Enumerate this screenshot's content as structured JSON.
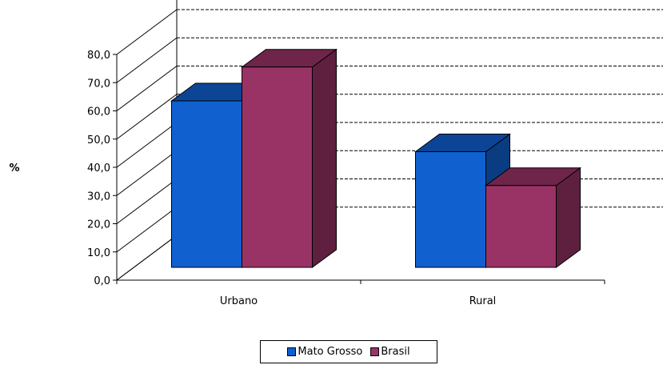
{
  "chart_data": {
    "type": "bar",
    "title": "",
    "xlabel": "",
    "ylabel": "%",
    "ylim": [
      0,
      80
    ],
    "yticks": [
      "0,0",
      "10,0",
      "20,0",
      "30,0",
      "40,0",
      "50,0",
      "60,0",
      "70,0",
      "80,0"
    ],
    "ytick_values": [
      0,
      10,
      20,
      30,
      40,
      50,
      60,
      70,
      80
    ],
    "categories": [
      "Urbano",
      "Rural"
    ],
    "series": [
      {
        "name": "Mato Grosso",
        "values": [
          59.0,
          41.0
        ],
        "color": "#1060D0"
      },
      {
        "name": "Brasil",
        "values": [
          71.0,
          29.0
        ],
        "color": "#993366"
      }
    ],
    "grid": true,
    "legend_position": "bottom",
    "style": "3d-clustered-column"
  }
}
